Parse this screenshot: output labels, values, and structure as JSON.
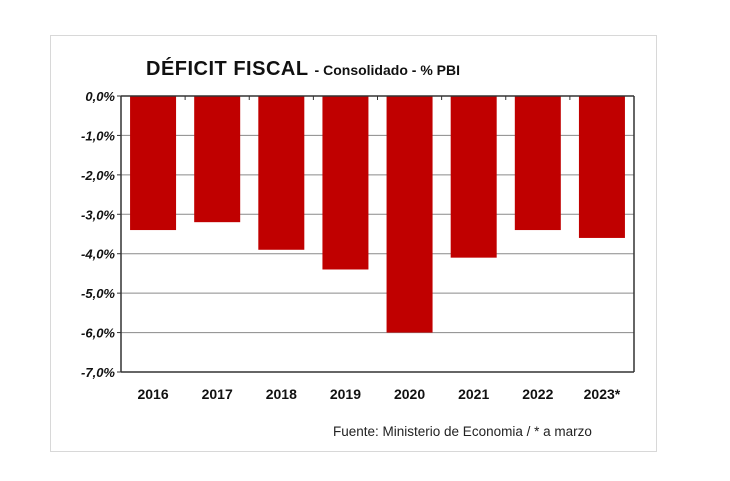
{
  "chart_data": {
    "type": "bar",
    "title": "DÉFICIT FISCAL",
    "subtitle": "- Consolidado - % PBI",
    "categories": [
      "2016",
      "2017",
      "2018",
      "2019",
      "2020",
      "2021",
      "2022",
      "2023*"
    ],
    "values": [
      -3.4,
      -3.2,
      -3.9,
      -4.4,
      -6.0,
      -4.1,
      -3.4,
      -3.6
    ],
    "ylim": [
      -7,
      0
    ],
    "yticks": [
      "0,0%",
      "-1,0%",
      "-2,0%",
      "-3,0%",
      "-4,0%",
      "-5,0%",
      "-6,0%",
      "-7,0%"
    ],
    "xlabel": "",
    "ylabel": "",
    "grid": true,
    "bar_color": "#c00000",
    "footnote": "Fuente: Ministerio de Economia  / * a marzo"
  }
}
